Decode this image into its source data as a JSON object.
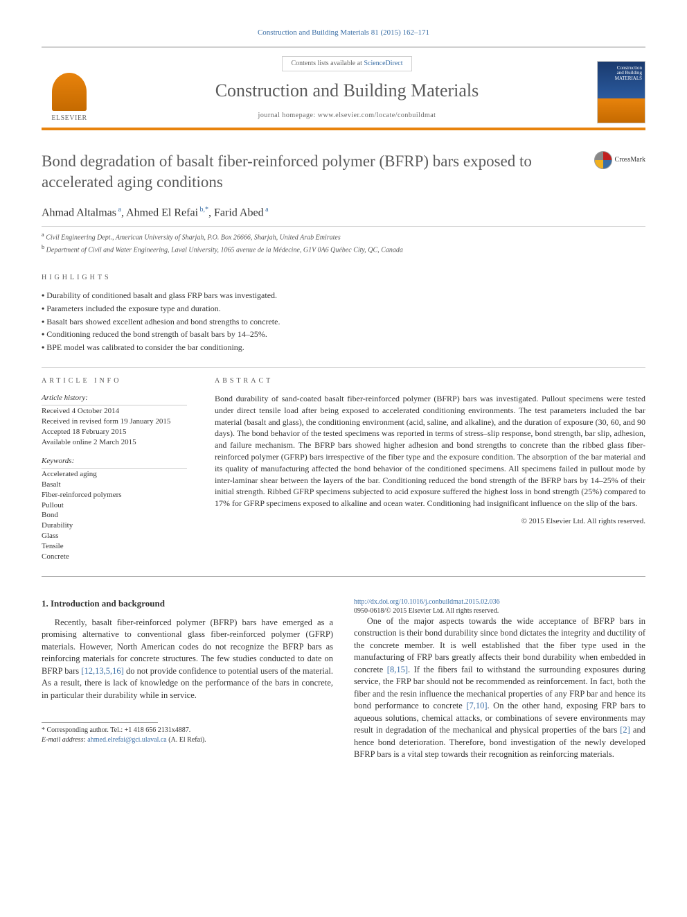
{
  "citation": "Construction and Building Materials 81 (2015) 162–171",
  "masthead": {
    "publisher": "ELSEVIER",
    "contents_prefix": "Contents lists available at ",
    "contents_link": "ScienceDirect",
    "journal_name": "Construction and Building Materials",
    "homepage_prefix": "journal homepage: ",
    "homepage_url": "www.elsevier.com/locate/conbuildmat",
    "cover_title_1": "Construction",
    "cover_title_2": "and Building",
    "cover_title_3": "MATERIALS"
  },
  "article": {
    "title": "Bond degradation of basalt fiber-reinforced polymer (BFRP) bars exposed to accelerated aging conditions",
    "crossmark_label": "CrossMark",
    "authors_html": "Ahmad Altalmas <sup>a</sup>, Ahmed El Refai <sup>b,*</sup>, Farid Abed <sup>a</sup>",
    "affiliations": [
      "a Civil Engineering Dept., American University of Sharjah, P.O. Box 26666, Sharjah, United Arab Emirates",
      "b Department of Civil and Water Engineering, Laval University, 1065 avenue de la Médecine, G1V 0A6 Québec City, QC, Canada"
    ]
  },
  "highlights": {
    "label": "HIGHLIGHTS",
    "items": [
      "Durability of conditioned basalt and glass FRP bars was investigated.",
      "Parameters included the exposure type and duration.",
      "Basalt bars showed excellent adhesion and bond strengths to concrete.",
      "Conditioning reduced the bond strength of basalt bars by 14–25%.",
      "BPE model was calibrated to consider the bar conditioning."
    ]
  },
  "article_info": {
    "heading": "ARTICLE INFO",
    "history_label": "Article history:",
    "history": [
      "Received 4 October 2014",
      "Received in revised form 19 January 2015",
      "Accepted 18 February 2015",
      "Available online 2 March 2015"
    ],
    "keywords_label": "Keywords:",
    "keywords": [
      "Accelerated aging",
      "Basalt",
      "Fiber-reinforced polymers",
      "Pullout",
      "Bond",
      "Durability",
      "Glass",
      "Tensile",
      "Concrete"
    ]
  },
  "abstract": {
    "heading": "ABSTRACT",
    "text": "Bond durability of sand-coated basalt fiber-reinforced polymer (BFRP) bars was investigated. Pullout specimens were tested under direct tensile load after being exposed to accelerated conditioning environments. The test parameters included the bar material (basalt and glass), the conditioning environment (acid, saline, and alkaline), and the duration of exposure (30, 60, and 90 days). The bond behavior of the tested specimens was reported in terms of stress–slip response, bond strength, bar slip, adhesion, and failure mechanism. The BFRP bars showed higher adhesion and bond strengths to concrete than the ribbed glass fiber-reinforced polymer (GFRP) bars irrespective of the fiber type and the exposure condition. The absorption of the bar material and its quality of manufacturing affected the bond behavior of the conditioned specimens. All specimens failed in pullout mode by inter-laminar shear between the layers of the bar. Conditioning reduced the bond strength of the BFRP bars by 14–25% of their initial strength. Ribbed GFRP specimens subjected to acid exposure suffered the highest loss in bond strength (25%) compared to 17% for GFRP specimens exposed to alkaline and ocean water. Conditioning had insignificant influence on the slip of the bars.",
    "copyright": "© 2015 Elsevier Ltd. All rights reserved."
  },
  "body": {
    "section_heading": "1. Introduction and background",
    "paragraphs": [
      "Recently, basalt fiber-reinforced polymer (BFRP) bars have emerged as a promising alternative to conventional glass fiber-reinforced polymer (GFRP) materials. However, North American codes do not recognize the BFRP bars as reinforcing materials for concrete structures. The few studies conducted to date on BFRP bars [12,13,5,16] do not provide confidence to potential users of the material. As a result, there is lack of knowledge on the performance of the bars in concrete, in particular their durability while in service.",
      "One of the major aspects towards the wide acceptance of BFRP bars in construction is their bond durability since bond dictates the integrity and ductility of the concrete member. It is well established that the fiber type used in the manufacturing of FRP bars greatly affects their bond durability when embedded in concrete [8,15]. If the fibers fail to withstand the surrounding exposures during service, the FRP bar should not be recommended as reinforcement. In fact, both the fiber and the resin influence the mechanical properties of any FRP bar and hence its bond performance to concrete [7,10]. On the other hand, exposing FRP bars to aqueous solutions, chemical attacks, or combinations of severe environments may result in degradation of the mechanical and physical properties of the bars [2] and hence bond deterioration. Therefore, bond investigation of the newly developed BFRP bars is a vital step towards their recognition as reinforcing materials."
    ]
  },
  "footnote": {
    "corresponding": "* Corresponding author. Tel.: +1 418 656 2131x4887.",
    "email_label": "E-mail address: ",
    "email": "ahmed.elrefai@gci.ulaval.ca",
    "email_name": " (A. El Refai)."
  },
  "footer": {
    "doi": "http://dx.doi.org/10.1016/j.conbuildmat.2015.02.036",
    "issn_line": "0950-0618/© 2015 Elsevier Ltd. All rights reserved."
  },
  "refs_inline": {
    "r1": "[12,13,5,16]",
    "r2": "[8,15]",
    "r3": "[7,10]",
    "r4": "[2]"
  },
  "colors": {
    "link": "#3a6ea5",
    "accent": "#e8830c",
    "text": "#333333",
    "muted": "#5a5a5a"
  }
}
